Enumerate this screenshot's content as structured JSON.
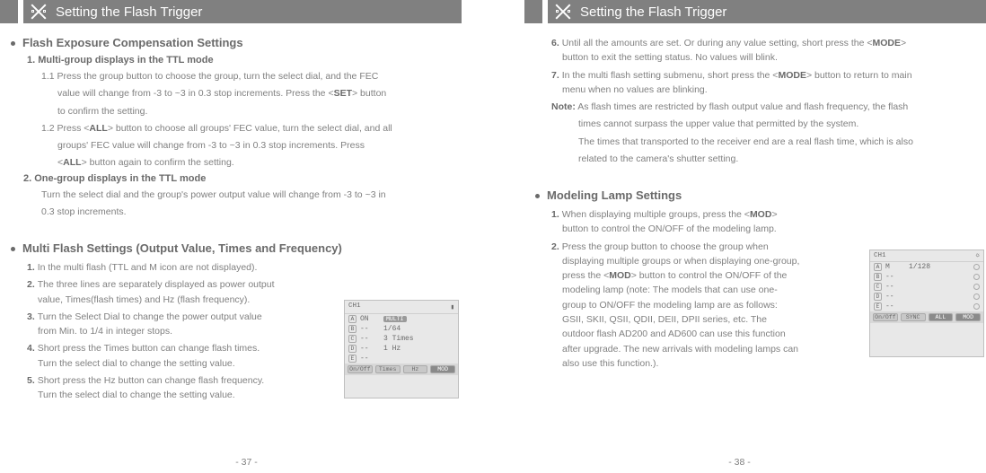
{
  "banner_title": "Setting the Flash Trigger",
  "left": {
    "h1": "Flash Exposure Compensation Settings",
    "s1": "1. Multi-group displays in the TTL mode",
    "s1_1a": "1.1 Press the group button to choose the group, turn the select dial, and the FEC",
    "s1_1b": "value will change from -3 to ~3 in 0.3 stop increments. Press the <",
    "s1_1c": "SET",
    "s1_1d": "> button",
    "s1_1e": "to confirm the setting.",
    "s1_2a": "1.2 Press <",
    "s1_2b": "ALL",
    "s1_2c": "> button to choose all groups' FEC value, turn the select dial, and all",
    "s1_2d": "groups' FEC value will change from -3 to ~3 in 0.3 stop increments. Press",
    "s1_2e": "<",
    "s1_2f": "ALL",
    "s1_2g": "> button again to confirm the setting.",
    "s2": "2. One-group displays in the TTL mode",
    "s2a": "Turn the select dial and the group's power output value will change from -3 to ~3 in",
    "s2b": "0.3 stop increments.",
    "h2": "Multi Flash Settings (Output Value, Times and Frequency)",
    "m1": "In the multi flash (TTL and M icon are not displayed).",
    "m2a": "The three lines are separately displayed as power output",
    "m2b": "value, Times(flash times) and Hz (flash frequency).",
    "m3a": "Turn the Select Dial to change the power output value",
    "m3b": "from Min. to 1/4 in integer stops.",
    "m4a": "Short press the Times button can change flash times.",
    "m4b": "Turn the select dial to change the setting value.",
    "m5a": "Short press the Hz button can change flash frequency.",
    "m5b": "Turn the select dial to change the setting value.",
    "pagenum": "- 37 -"
  },
  "right": {
    "r6a": "Until all the amounts are set. Or during any value setting, short press the <",
    "r6b": "MODE",
    "r6c": ">",
    "r6d": "button to exit the setting status. No values will blink.",
    "r7a": "In the multi flash setting submenu, short press the <",
    "r7b": "MODE",
    "r7c": "> button to return to main",
    "r7d": "menu when no values are blinking.",
    "noteL": "Note:",
    "note1": "As flash times are restricted by flash output value and flash frequency, the flash",
    "note2": "times cannot surpass the upper value that permitted by the system.",
    "note3": "The times that transported to the receiver end are a real flash time, which is also",
    "note4": "related to the camera's shutter setting.",
    "h3": "Modeling Lamp Settings",
    "ml1a": "When displaying multiple groups, press the <",
    "ml1b": "MOD",
    "ml1c": ">",
    "ml1d": "button to control the ON/OFF of the modeling lamp.",
    "ml2a": "Press the group button to choose the group when",
    "ml2b": "displaying multiple groups or when displaying one-group,",
    "ml2c": "press the <",
    "ml2d": "MOD",
    "ml2e": "> button to control the ON/OFF of the",
    "ml2f": "modeling lamp (note: The models that can use one-",
    "ml2g": "group to ON/OFF the modeling lamp are as follows:",
    "ml2h": "GSII, SKII, QSII, QDII, DEII, DPII series, etc. The",
    "ml2i": "outdoor flash AD200 and AD600 can use this function",
    "ml2j": "after upgrade. The new arrivals with modeling lamps can",
    "ml2k": "also use this function.).",
    "pagenum": "- 38 -"
  },
  "lcd1": {
    "ch": "CH1",
    "rows": [
      {
        "g": "A",
        "v1": "ON",
        "tag": "MULTI"
      },
      {
        "g": "B",
        "v1": "--",
        "v2": "1/64"
      },
      {
        "g": "C",
        "v1": "--",
        "v2": "3 Times"
      },
      {
        "g": "D",
        "v1": "--",
        "v2": "1 Hz"
      },
      {
        "g": "E",
        "v1": "--",
        "v2": ""
      }
    ],
    "bot": [
      "On/Off",
      "Times",
      "Hz",
      "MOD"
    ]
  },
  "lcd2": {
    "ch": "CH1",
    "rows": [
      {
        "g": "A",
        "v1": "M",
        "v2": "1/128"
      },
      {
        "g": "B",
        "v1": "--",
        "v2": ""
      },
      {
        "g": "C",
        "v1": "--",
        "v2": ""
      },
      {
        "g": "D",
        "v1": "--",
        "v2": ""
      },
      {
        "g": "E",
        "v1": "--",
        "v2": ""
      }
    ],
    "bot": [
      "On/Off",
      "SYNC",
      "ALL",
      "MOD"
    ]
  }
}
